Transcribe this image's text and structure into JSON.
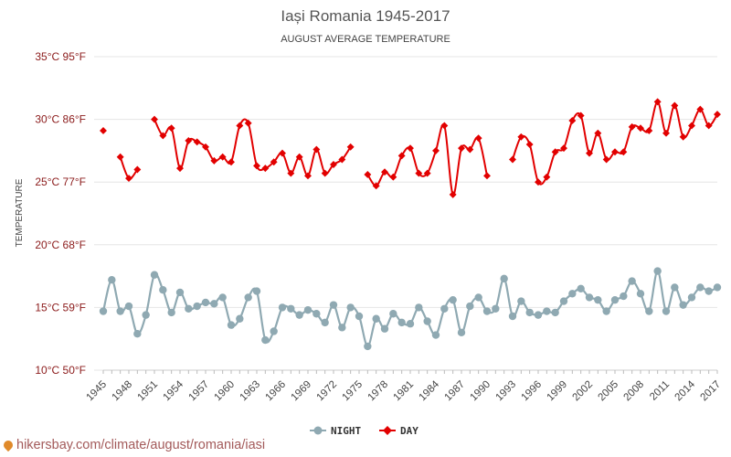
{
  "chart_data": {
    "type": "line",
    "title": "Iași Romania 1945-2017",
    "subtitle": "AUGUST AVERAGE TEMPERATURE",
    "ylabel": "TEMPERATURE",
    "ylim": [
      10,
      35
    ],
    "yticks": [
      {
        "value": 35,
        "label": "35°C 95°F"
      },
      {
        "value": 30,
        "label": "30°C 86°F"
      },
      {
        "value": 25,
        "label": "25°C 77°F"
      },
      {
        "value": 20,
        "label": "20°C 68°F"
      },
      {
        "value": 15,
        "label": "15°C 59°F"
      },
      {
        "value": 10,
        "label": "10°C 50°F"
      }
    ],
    "xlim": [
      1945,
      2017
    ],
    "xticks": [
      "1945",
      "1948",
      "1951",
      "1954",
      "1957",
      "1960",
      "1963",
      "1966",
      "1969",
      "1972",
      "1975",
      "1978",
      "1981",
      "1984",
      "1987",
      "1990",
      "1993",
      "1996",
      "1999",
      "2002",
      "2005",
      "2008",
      "2011",
      "2014",
      "2017"
    ],
    "grid": true,
    "legend_position": "bottom-center",
    "x": [
      1945,
      1946,
      1947,
      1948,
      1949,
      1950,
      1951,
      1952,
      1953,
      1954,
      1955,
      1956,
      1957,
      1958,
      1959,
      1960,
      1961,
      1962,
      1963,
      1964,
      1965,
      1966,
      1967,
      1968,
      1969,
      1970,
      1971,
      1972,
      1973,
      1974,
      1975,
      1976,
      1977,
      1978,
      1979,
      1980,
      1981,
      1982,
      1983,
      1984,
      1985,
      1986,
      1987,
      1988,
      1989,
      1990,
      1991,
      1992,
      1993,
      1994,
      1995,
      1996,
      1997,
      1998,
      1999,
      2000,
      2001,
      2002,
      2003,
      2004,
      2005,
      2006,
      2007,
      2008,
      2009,
      2010,
      2011,
      2012,
      2013,
      2014,
      2015,
      2016,
      2017
    ],
    "series": [
      {
        "name": "NIGHT",
        "color": "#8fa9b2",
        "values": [
          14.7,
          17.2,
          14.7,
          15.1,
          12.9,
          14.4,
          17.6,
          16.4,
          14.6,
          16.2,
          14.9,
          15.1,
          15.4,
          15.3,
          15.8,
          13.6,
          14.1,
          15.8,
          16.3,
          12.4,
          13.1,
          15,
          14.9,
          14.4,
          14.8,
          14.5,
          13.8,
          15.2,
          13.4,
          15,
          14.3,
          11.9,
          14.1,
          13.3,
          14.5,
          13.8,
          13.7,
          15,
          13.9,
          12.8,
          14.9,
          15.6,
          13,
          15.1,
          15.8,
          14.7,
          14.9,
          17.3,
          14.3,
          15.5,
          14.6,
          14.4,
          14.7,
          14.6,
          15.5,
          16.1,
          16.5,
          15.8,
          15.6,
          14.7,
          15.6,
          15.9,
          17.1,
          16.1,
          14.7,
          17.9,
          14.7,
          16.6,
          15.2,
          15.8,
          16.6,
          16.3,
          16.6
        ]
      },
      {
        "name": "DAY",
        "color": "#e20000",
        "values": [
          29.1,
          null,
          27,
          25.3,
          26,
          null,
          30,
          28.7,
          29.3,
          26.1,
          28.3,
          28.2,
          27.8,
          26.7,
          27,
          26.6,
          29.5,
          29.7,
          26.3,
          26.1,
          26.6,
          27.3,
          25.7,
          27,
          25.5,
          27.6,
          25.7,
          26.4,
          26.8,
          27.8,
          null,
          25.6,
          24.7,
          25.8,
          25.4,
          27.1,
          27.7,
          25.7,
          25.7,
          27.5,
          29.5,
          24,
          27.7,
          27.6,
          28.5,
          25.5,
          null,
          null,
          26.8,
          28.6,
          28,
          25,
          25.4,
          27.4,
          27.7,
          29.9,
          30.3,
          27.3,
          28.9,
          26.8,
          27.4,
          27.4,
          29.4,
          29.3,
          29.1,
          31.4,
          28.9,
          31.1,
          28.6,
          29.5,
          30.8,
          29.5,
          30.4
        ]
      }
    ]
  },
  "footer": {
    "text": "hikersbay.com/climate/august/romania/iasi"
  }
}
